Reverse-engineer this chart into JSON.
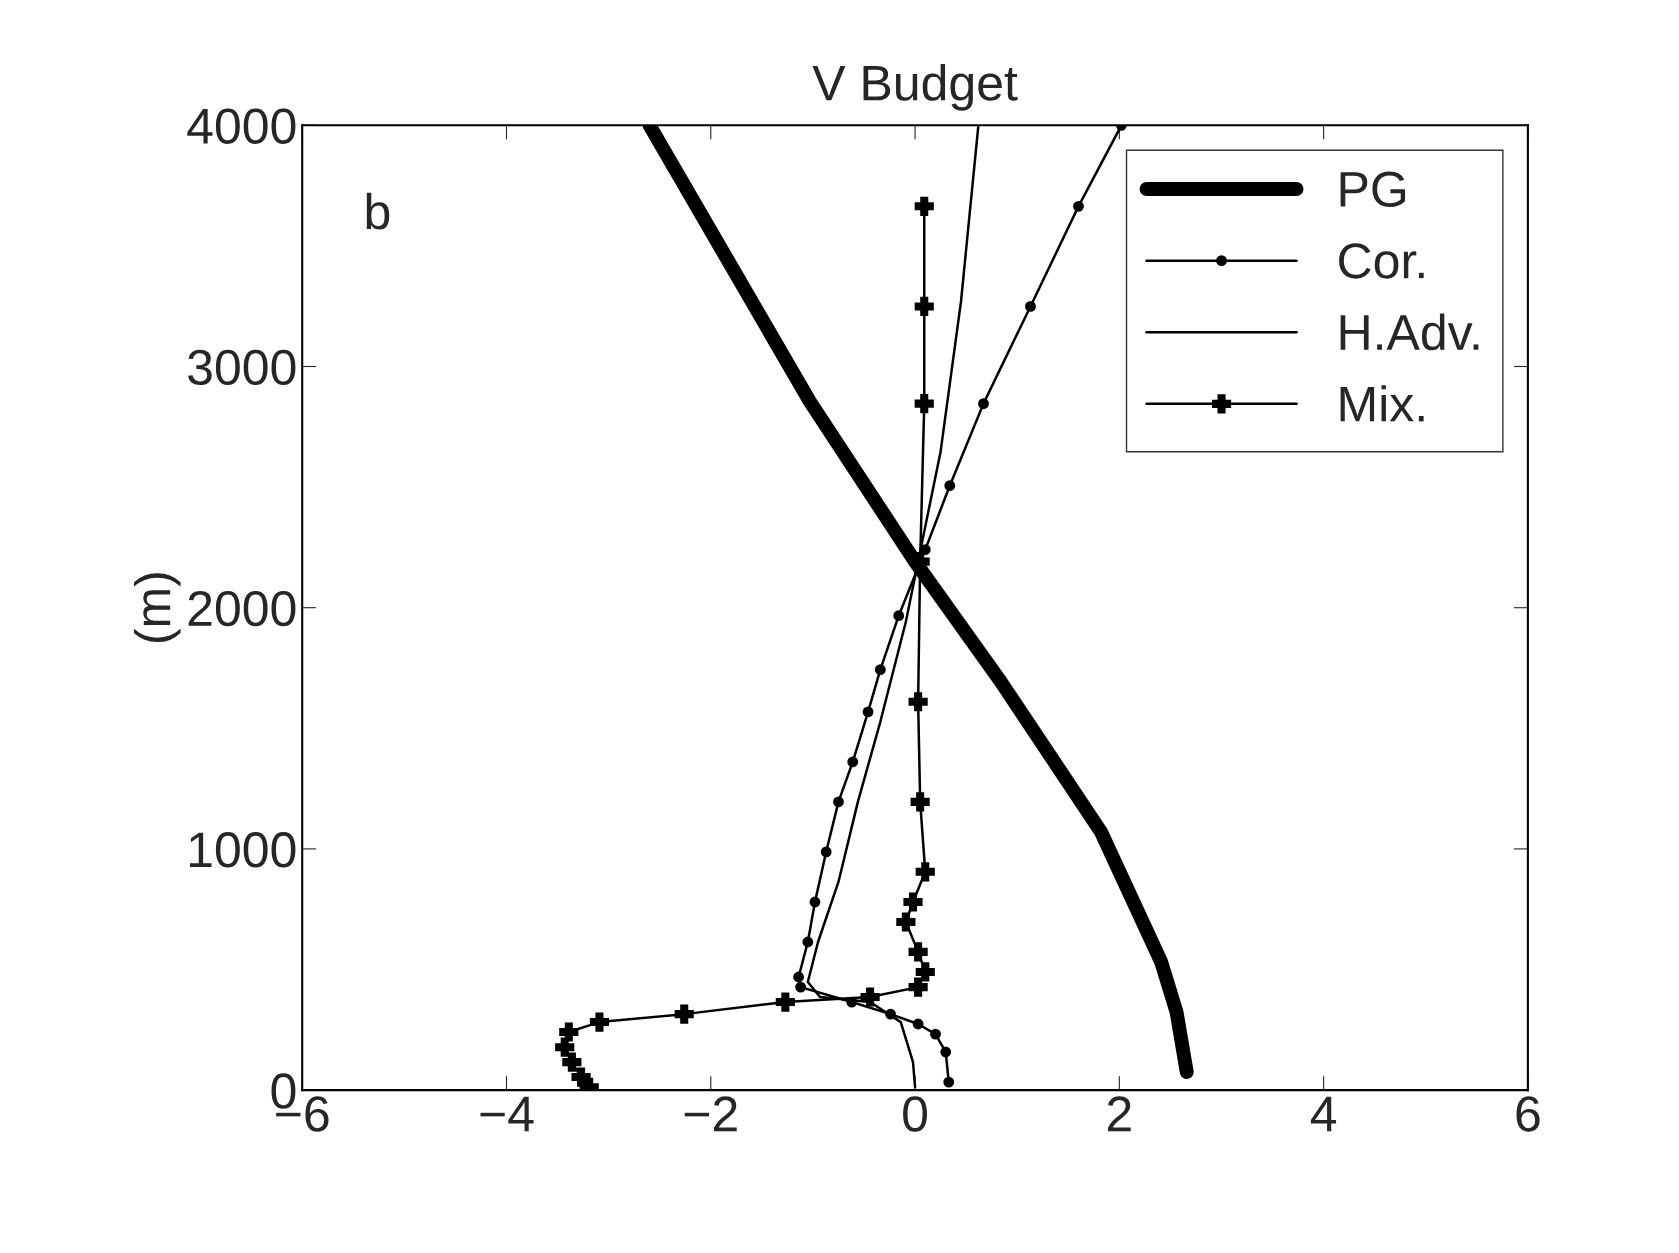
{
  "chart_data": {
    "type": "line",
    "title": "V Budget",
    "ylabel": "(m)",
    "annotations": [
      "b"
    ],
    "xlim": [
      -6,
      6
    ],
    "ylim": [
      0,
      4000
    ],
    "xticks": [
      {
        "value": -6,
        "label": "−6"
      },
      {
        "value": -4,
        "label": "−4"
      },
      {
        "value": -2,
        "label": "−2"
      },
      0,
      2,
      4,
      6
    ],
    "yticks": [
      0,
      1000,
      2000,
      3000,
      4000
    ],
    "grid": false,
    "legend": "top right",
    "series": [
      {
        "name": "PG",
        "color": "#000000",
        "marker": "none",
        "x": [
          -2.6,
          -1.03,
          0,
          0.84,
          1.82,
          2.41,
          2.56,
          2.66
        ],
        "values": [
          4000,
          2855,
          2191,
          1693,
          1071,
          531,
          324,
          75
        ]
      },
      {
        "name": "Cor.",
        "color": "#000000",
        "marker": "circle",
        "x": [
          2.02,
          1.6,
          1.13,
          0.67,
          0.34,
          0.1,
          -0.16,
          -0.34,
          -0.46,
          -0.61,
          -0.75,
          -0.87,
          -0.98,
          -1.05,
          -1.14,
          -1.12,
          -0.62,
          -0.24,
          0.03,
          0.2,
          0.3,
          0.33
        ],
        "values": [
          4000,
          3664,
          3249,
          2846,
          2506,
          2241,
          1967,
          1743,
          1568,
          1361,
          1195,
          988,
          780,
          614,
          469,
          427,
          365,
          315,
          274,
          232,
          158,
          33
        ]
      },
      {
        "name": "H.Adv.",
        "color": "#000000",
        "marker": "none",
        "x": [
          0.62,
          0.45,
          0.25,
          0.07,
          -0.09,
          -0.34,
          -0.56,
          -0.75,
          -0.95,
          -1.05,
          -0.93,
          -0.44,
          -0.14,
          -0.02,
          0
        ],
        "values": [
          4000,
          3270,
          2647,
          2274,
          1942,
          1527,
          1195,
          863,
          614,
          448,
          386,
          365,
          282,
          116,
          12
        ]
      },
      {
        "name": "Mix.",
        "color": "#000000",
        "marker": "cross",
        "x": [
          0.09,
          0.09,
          0.09,
          0.05,
          0.03,
          0.05,
          0.1,
          -0.02,
          -0.09,
          0.03,
          0.1,
          0.03,
          -0.44,
          -1.27,
          -2.26,
          -3.09,
          -3.39,
          -3.43,
          -3.36,
          -3.27,
          -3.19
        ],
        "values": [
          3664,
          3249,
          2846,
          2191,
          1610,
          1195,
          905,
          780,
          697,
          573,
          490,
          427,
          386,
          365,
          315,
          282,
          241,
          178,
          116,
          54,
          12
        ]
      }
    ]
  }
}
